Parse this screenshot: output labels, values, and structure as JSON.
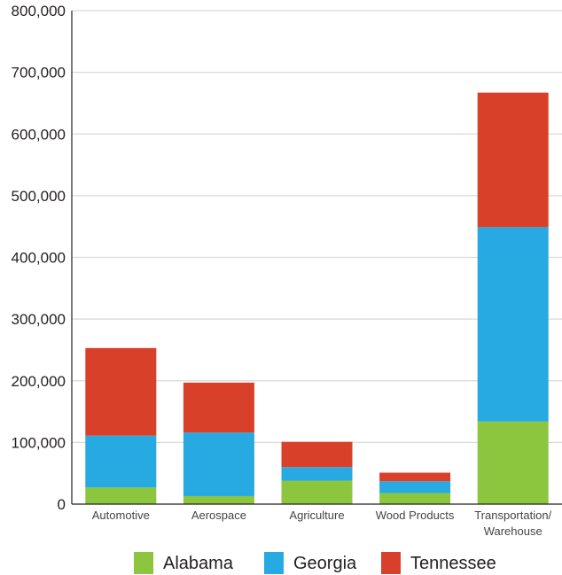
{
  "chart_data": {
    "type": "bar",
    "stacked": true,
    "categories": [
      "Automotive",
      "Aerospace",
      "Agriculture",
      "Wood Products",
      "Transportation/ Warehouse"
    ],
    "category_lines": [
      [
        "Automotive"
      ],
      [
        "Aerospace"
      ],
      [
        "Agriculture"
      ],
      [
        "Wood Products"
      ],
      [
        "Transportation/",
        "Warehouse"
      ]
    ],
    "series": [
      {
        "name": "Alabama",
        "color": "#8cc63f",
        "values": [
          27000,
          13000,
          38000,
          18000,
          134000
        ]
      },
      {
        "name": "Georgia",
        "color": "#27a9e1",
        "values": [
          84000,
          103000,
          22000,
          19000,
          315000
        ]
      },
      {
        "name": "Tennessee",
        "color": "#d9402a",
        "values": [
          142000,
          81000,
          41000,
          14000,
          218000
        ]
      }
    ],
    "title": "",
    "xlabel": "",
    "ylabel": "",
    "ylim": [
      0,
      800000
    ],
    "y_ticks": [
      0,
      100000,
      200000,
      300000,
      400000,
      500000,
      600000,
      700000,
      800000
    ],
    "y_tick_labels": [
      "0",
      "100,000",
      "200,000",
      "300,000",
      "400,000",
      "500,000",
      "600,000",
      "700,000",
      "800,000"
    ],
    "grid": true,
    "legend_position": "bottom"
  }
}
